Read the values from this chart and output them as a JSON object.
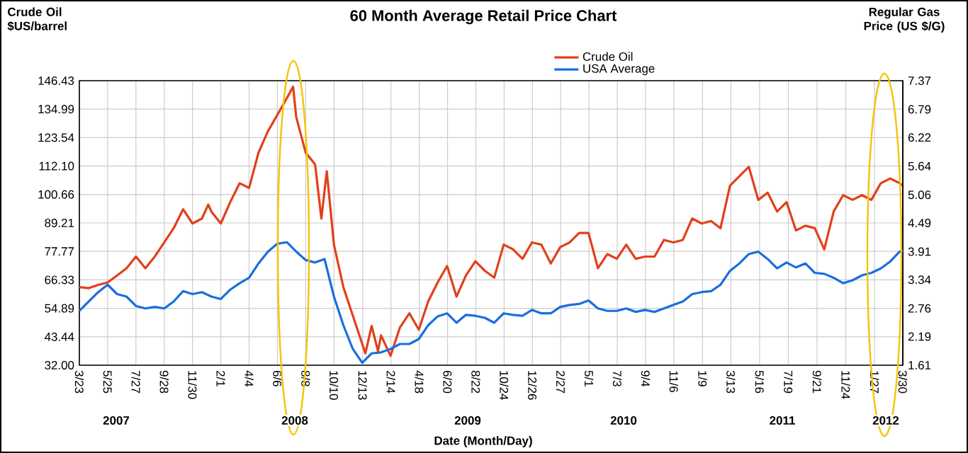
{
  "chart_data": {
    "type": "line",
    "title": "60 Month Average Retail Price Chart",
    "xlabel": "Date (Month/Day)",
    "ylabel": "Crude Oil $US/barrel",
    "y2label": "Regular Gas Price (US $/G)",
    "xlim": [
      "2007-03-23",
      "2012-03-30"
    ],
    "xticks": [
      {
        "value": "2007-03-23",
        "label": "3/23"
      },
      {
        "value": "2007-05-25",
        "label": "5/25"
      },
      {
        "value": "2007-07-27",
        "label": "7/27"
      },
      {
        "value": "2007-09-28",
        "label": "9/28"
      },
      {
        "value": "2007-11-30",
        "label": "11/30"
      },
      {
        "value": "2008-02-01",
        "label": "2/1"
      },
      {
        "value": "2008-04-04",
        "label": "4/4"
      },
      {
        "value": "2008-06-06",
        "label": "6/6"
      },
      {
        "value": "2008-08-08",
        "label": "8/8"
      },
      {
        "value": "2008-10-10",
        "label": "10/10"
      },
      {
        "value": "2008-12-13",
        "label": "12/13"
      },
      {
        "value": "2009-02-14",
        "label": "2/14"
      },
      {
        "value": "2009-04-18",
        "label": "4/18"
      },
      {
        "value": "2009-06-20",
        "label": "6/20"
      },
      {
        "value": "2009-08-22",
        "label": "8/22"
      },
      {
        "value": "2009-10-24",
        "label": "10/24"
      },
      {
        "value": "2009-12-26",
        "label": "12/26"
      },
      {
        "value": "2010-02-27",
        "label": "2/27"
      },
      {
        "value": "2010-05-01",
        "label": "5/1"
      },
      {
        "value": "2010-07-03",
        "label": "7/3"
      },
      {
        "value": "2010-09-04",
        "label": "9/4"
      },
      {
        "value": "2010-11-06",
        "label": "11/6"
      },
      {
        "value": "2011-01-09",
        "label": "1/9"
      },
      {
        "value": "2011-03-13",
        "label": "3/13"
      },
      {
        "value": "2011-05-16",
        "label": "5/16"
      },
      {
        "value": "2011-07-19",
        "label": "7/19"
      },
      {
        "value": "2011-09-21",
        "label": "9/21"
      },
      {
        "value": "2011-11-24",
        "label": "11/24"
      },
      {
        "value": "2012-01-27",
        "label": "1/27"
      },
      {
        "value": "2012-03-30",
        "label": "3/30"
      }
    ],
    "ylim": [
      32,
      146.43
    ],
    "yticks": [
      {
        "value": 32,
        "label": "32.00"
      },
      43.44,
      54.89,
      66.33,
      77.77,
      89.21,
      100.66,
      {
        "value": 112.1,
        "label": "112.10"
      },
      123.54,
      134.99,
      146.43
    ],
    "y2lim": [
      1.61,
      7.37
    ],
    "y2ticks": [
      1.61,
      2.19,
      2.76,
      3.34,
      3.91,
      4.49,
      5.06,
      5.64,
      6.22,
      6.79,
      7.37
    ],
    "grid": true,
    "legend": "top right",
    "annotations": [
      "2007",
      "2008",
      "2009",
      "2010",
      "2011",
      "2012"
    ],
    "series": [
      {
        "name": "Crude Oil",
        "color": "#e2401a",
        "x": [
          "2007-03-23",
          "2007-04-13",
          "2007-05-04",
          "2007-05-25",
          "2007-06-15",
          "2007-07-06",
          "2007-07-27",
          "2007-08-17",
          "2007-09-07",
          "2007-09-28",
          "2007-10-19",
          "2007-11-09",
          "2007-11-30",
          "2007-12-21",
          "2008-01-04",
          "2008-01-11",
          "2008-02-01",
          "2008-02-22",
          "2008-03-14",
          "2008-04-04",
          "2008-04-25",
          "2008-05-16",
          "2008-06-06",
          "2008-06-27",
          "2008-07-11",
          "2008-07-18",
          "2008-08-08",
          "2008-08-29",
          "2008-09-12",
          "2008-09-24",
          "2008-10-10",
          "2008-10-31",
          "2008-11-21",
          "2008-12-05",
          "2008-12-19",
          "2009-01-02",
          "2009-01-16",
          "2009-01-23",
          "2009-02-13",
          "2009-03-06",
          "2009-03-27",
          "2009-04-17",
          "2009-05-08",
          "2009-05-29",
          "2009-06-19",
          "2009-07-10",
          "2009-07-31",
          "2009-08-21",
          "2009-09-11",
          "2009-10-02",
          "2009-10-23",
          "2009-11-13",
          "2009-12-04",
          "2009-12-25",
          "2010-01-15",
          "2010-02-05",
          "2010-02-26",
          "2010-03-19",
          "2010-04-09",
          "2010-04-30",
          "2010-05-21",
          "2010-06-11",
          "2010-07-02",
          "2010-07-23",
          "2010-08-13",
          "2010-09-03",
          "2010-09-24",
          "2010-10-15",
          "2010-11-05",
          "2010-11-26",
          "2010-12-17",
          "2011-01-07",
          "2011-01-28",
          "2011-02-18",
          "2011-03-11",
          "2011-04-01",
          "2011-04-22",
          "2011-05-13",
          "2011-06-03",
          "2011-06-24",
          "2011-07-15",
          "2011-08-05",
          "2011-08-26",
          "2011-09-16",
          "2011-10-07",
          "2011-10-28",
          "2011-11-18",
          "2011-12-09",
          "2011-12-30",
          "2012-01-20",
          "2012-02-10",
          "2012-03-02",
          "2012-03-23",
          "2012-03-30"
        ],
        "values": [
          63.4,
          63,
          64.3,
          65.3,
          68.1,
          71,
          75.7,
          71,
          75.7,
          81.4,
          87.1,
          94.7,
          89,
          91,
          96.6,
          93.8,
          89,
          97.6,
          105.2,
          103.3,
          117.5,
          126.1,
          132.7,
          139.4,
          144,
          131.8,
          117.5,
          112.8,
          91,
          110,
          80.5,
          63.4,
          52,
          44.4,
          36.8,
          47.8,
          37.7,
          44,
          35.8,
          47.2,
          52.9,
          46.3,
          57.7,
          65.3,
          71.9,
          59.6,
          68.1,
          73.8,
          70,
          67.2,
          80.5,
          78.6,
          74.8,
          81.4,
          80.5,
          72.9,
          79.5,
          81.4,
          85.2,
          85.2,
          71,
          76.7,
          74.8,
          80.5,
          74.8,
          75.7,
          75.7,
          82.4,
          81.4,
          82.4,
          91,
          89,
          90,
          87.1,
          104.2,
          108,
          111.8,
          98.5,
          101.4,
          93.8,
          97.6,
          86.2,
          88.1,
          87.1,
          78.6,
          93.8,
          100.4,
          98.5,
          100.4,
          98.5,
          105.2,
          107.1,
          105.2,
          104.2
        ]
      },
      {
        "name": "USA Average",
        "color": "#1a6ee0",
        "axis": "y2",
        "x": [
          "2007-03-23",
          "2007-04-13",
          "2007-05-04",
          "2007-05-25",
          "2007-06-15",
          "2007-07-06",
          "2007-07-27",
          "2007-08-17",
          "2007-09-07",
          "2007-09-28",
          "2007-10-19",
          "2007-11-09",
          "2007-11-30",
          "2007-12-21",
          "2008-01-11",
          "2008-02-01",
          "2008-02-22",
          "2008-03-14",
          "2008-04-04",
          "2008-04-25",
          "2008-05-16",
          "2008-06-06",
          "2008-06-27",
          "2008-07-18",
          "2008-08-08",
          "2008-08-29",
          "2008-09-19",
          "2008-10-10",
          "2008-10-31",
          "2008-11-21",
          "2008-12-12",
          "2009-01-02",
          "2009-01-23",
          "2009-02-13",
          "2009-03-06",
          "2009-03-27",
          "2009-04-17",
          "2009-05-08",
          "2009-05-29",
          "2009-06-19",
          "2009-07-10",
          "2009-07-31",
          "2009-08-21",
          "2009-09-11",
          "2009-10-02",
          "2009-10-23",
          "2009-11-13",
          "2009-12-04",
          "2009-12-25",
          "2010-01-15",
          "2010-02-05",
          "2010-02-26",
          "2010-03-19",
          "2010-04-09",
          "2010-04-30",
          "2010-05-21",
          "2010-06-11",
          "2010-07-02",
          "2010-07-23",
          "2010-08-13",
          "2010-09-03",
          "2010-09-24",
          "2010-10-15",
          "2010-11-05",
          "2010-11-26",
          "2010-12-17",
          "2011-01-07",
          "2011-01-28",
          "2011-02-18",
          "2011-03-11",
          "2011-04-01",
          "2011-04-22",
          "2011-05-13",
          "2011-06-03",
          "2011-06-24",
          "2011-07-15",
          "2011-08-05",
          "2011-08-26",
          "2011-09-16",
          "2011-10-07",
          "2011-10-28",
          "2011-11-18",
          "2011-12-09",
          "2011-12-30",
          "2012-01-20",
          "2012-02-10",
          "2012-03-02",
          "2012-03-23",
          "2012-03-30"
        ],
        "values": [
          2.71,
          2.9,
          3.09,
          3.24,
          3.05,
          3.0,
          2.81,
          2.76,
          2.79,
          2.76,
          2.9,
          3.11,
          3.05,
          3.09,
          3.0,
          2.95,
          3.14,
          3.27,
          3.38,
          3.67,
          3.91,
          4.07,
          4.1,
          3.91,
          3.74,
          3.69,
          3.76,
          3.0,
          2.42,
          1.94,
          1.66,
          1.85,
          1.87,
          1.94,
          2.04,
          2.04,
          2.14,
          2.42,
          2.6,
          2.66,
          2.47,
          2.63,
          2.61,
          2.57,
          2.47,
          2.66,
          2.63,
          2.61,
          2.73,
          2.66,
          2.66,
          2.79,
          2.83,
          2.85,
          2.92,
          2.76,
          2.71,
          2.71,
          2.76,
          2.69,
          2.73,
          2.69,
          2.76,
          2.83,
          2.9,
          3.05,
          3.09,
          3.11,
          3.24,
          3.52,
          3.67,
          3.86,
          3.91,
          3.76,
          3.57,
          3.69,
          3.59,
          3.67,
          3.48,
          3.46,
          3.38,
          3.27,
          3.33,
          3.43,
          3.48,
          3.57,
          3.71,
          3.91,
          3.93
        ]
      }
    ]
  }
}
